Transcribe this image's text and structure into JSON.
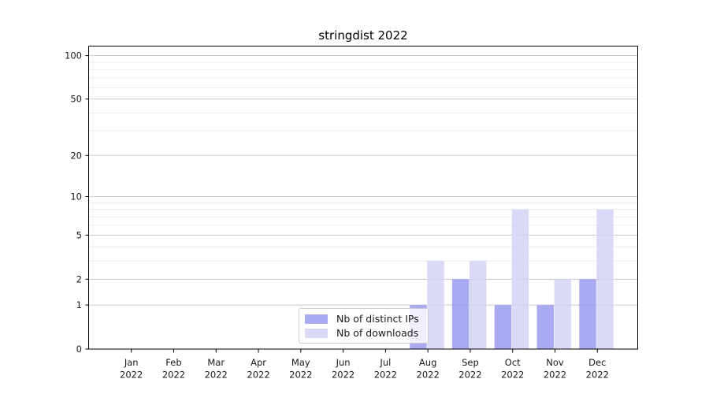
{
  "chart_data": {
    "type": "bar",
    "title": "stringdist 2022",
    "categories": [
      "Jan 2022",
      "Feb 2022",
      "Mar 2022",
      "Apr 2022",
      "May 2022",
      "Jun 2022",
      "Jul 2022",
      "Aug 2022",
      "Sep 2022",
      "Oct 2022",
      "Nov 2022",
      "Dec 2022"
    ],
    "series": [
      {
        "name": "Nb of distinct IPs",
        "color": "#9b9bf0",
        "values": [
          0,
          0,
          0,
          0,
          0,
          0,
          0,
          1,
          2,
          1,
          1,
          2
        ]
      },
      {
        "name": "Nb of downloads",
        "color": "#d3d3f6",
        "values": [
          0,
          0,
          0,
          0,
          0,
          0,
          0,
          3,
          3,
          8,
          2,
          8
        ]
      }
    ],
    "bar_opacity": 0.85,
    "y_axis": {
      "scale": "log1p",
      "major_ticks": [
        0,
        1,
        2,
        5,
        10,
        20,
        50,
        100
      ],
      "minor_ticks": [
        3,
        4,
        6,
        7,
        8,
        9,
        30,
        40,
        60,
        70,
        80,
        90
      ],
      "ylim": [
        0,
        115
      ]
    },
    "grid": true,
    "legend_position": "bottom-center",
    "colors": {
      "major_gridline": "#c9c9c9",
      "minor_gridline": "#ececec",
      "spine": "#000000",
      "background": "#ffffff"
    }
  }
}
